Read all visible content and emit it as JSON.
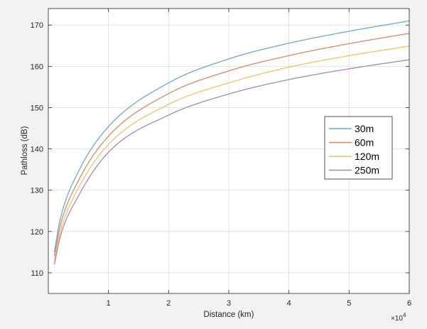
{
  "chart_data": {
    "type": "line",
    "xlabel": "Distance (km)",
    "ylabel": "Pathloss (dB)",
    "x_exponent_label": "×10",
    "x_exponent_power": "4",
    "xlim": [
      0,
      60000
    ],
    "ylim": [
      105,
      174
    ],
    "x_ticks": [
      10000,
      20000,
      30000,
      40000,
      50000,
      60000
    ],
    "x_tick_labels": [
      "1",
      "2",
      "3",
      "4",
      "5",
      "6"
    ],
    "y_ticks": [
      110,
      120,
      130,
      140,
      150,
      160,
      170
    ],
    "y_tick_labels": [
      "110",
      "120",
      "130",
      "140",
      "150",
      "160",
      "170"
    ],
    "grid": true,
    "legend_position": "right",
    "x": [
      1000,
      2000,
      5000,
      10000,
      20000,
      30000,
      40000,
      50000,
      60000
    ],
    "series": [
      {
        "name": "30m",
        "color": "#72a6cf",
        "values": [
          115.0,
          123.1,
          134.5,
          145.4,
          156.0,
          161.8,
          165.6,
          168.5,
          171.0
        ]
      },
      {
        "name": "60m",
        "color": "#d8896b",
        "values": [
          114.0,
          121.5,
          132.3,
          143.1,
          153.4,
          158.9,
          162.6,
          165.5,
          168.0
        ]
      },
      {
        "name": "120m",
        "color": "#ecc46a",
        "values": [
          113.0,
          120.0,
          130.5,
          141.1,
          150.8,
          156.0,
          159.8,
          162.6,
          164.9
        ]
      },
      {
        "name": "250m",
        "color": "#a786bd",
        "values": [
          112.0,
          118.8,
          128.6,
          139.2,
          148.2,
          153.3,
          156.8,
          159.4,
          161.6
        ]
      }
    ]
  }
}
